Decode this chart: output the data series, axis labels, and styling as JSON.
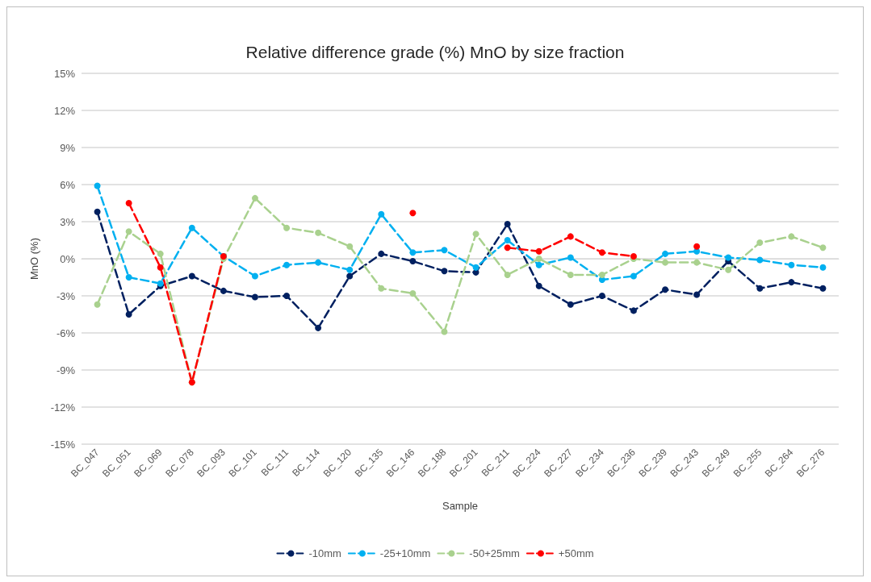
{
  "chart_data": {
    "type": "line",
    "title": "Relative difference grade (%) MnO by size fraction",
    "xlabel": "Sample",
    "ylabel": "MnO (%)",
    "categories": [
      "BC_047",
      "BC_051",
      "BC_069",
      "BC_078",
      "BC_093",
      "BC_101",
      "BC_111",
      "BC_114",
      "BC_120",
      "BC_135",
      "BC_146",
      "BC_188",
      "BC_201",
      "BC_211",
      "BC_224",
      "BC_227",
      "BC_234",
      "BC_236",
      "BC_239",
      "BC_243",
      "BC_249",
      "BC_255",
      "BC_264",
      "BC_276"
    ],
    "series": [
      {
        "name": "-10mm",
        "color": "#002060",
        "values": [
          3.8,
          -4.5,
          -2.2,
          -1.4,
          -2.6,
          -3.1,
          -3.0,
          -5.6,
          -1.4,
          0.4,
          -0.2,
          -1.0,
          -1.1,
          2.8,
          -2.2,
          -3.7,
          -3.0,
          -4.2,
          -2.5,
          -2.9,
          -0.2,
          -2.4,
          -1.9,
          -2.4
        ]
      },
      {
        "name": "-25+10mm",
        "color": "#00b0f0",
        "values": [
          5.9,
          -1.5,
          -2.0,
          2.5,
          0.2,
          -1.4,
          -0.5,
          -0.3,
          -0.9,
          3.6,
          0.5,
          0.7,
          -0.7,
          1.5,
          -0.5,
          0.1,
          -1.7,
          -1.4,
          0.4,
          0.6,
          0.1,
          -0.1,
          -0.5,
          -0.7
        ]
      },
      {
        "name": "-50+25mm",
        "color": "#a9d18e",
        "values": [
          -3.7,
          2.2,
          0.4,
          -10.0,
          0.0,
          4.9,
          2.5,
          2.1,
          1.0,
          -2.4,
          -2.8,
          -5.9,
          2.0,
          -1.3,
          0.0,
          -1.3,
          -1.3,
          0.0,
          -0.3,
          -0.3,
          -0.9,
          1.3,
          1.8,
          0.9
        ]
      },
      {
        "name": "+50mm",
        "color": "#ff0000",
        "values": [
          null,
          4.5,
          -0.7,
          -10.0,
          0.2,
          null,
          null,
          null,
          null,
          null,
          3.7,
          null,
          null,
          0.9,
          0.6,
          1.8,
          0.5,
          0.2,
          null,
          1.0,
          null,
          null,
          null,
          null
        ]
      }
    ],
    "ylim": [
      -15,
      15
    ],
    "yticks": [
      {
        "value": -15,
        "label": "-15%"
      },
      {
        "value": -12,
        "label": "-12%"
      },
      {
        "value": -9,
        "label": "-9%"
      },
      {
        "value": -6,
        "label": "-6%"
      },
      {
        "value": -3,
        "label": "-3%"
      },
      {
        "value": 0,
        "label": "0%"
      },
      {
        "value": 3,
        "label": "3%"
      },
      {
        "value": 6,
        "label": "6%"
      },
      {
        "value": 9,
        "label": "9%"
      },
      {
        "value": 12,
        "label": "12%"
      },
      {
        "value": 15,
        "label": "15%"
      }
    ],
    "grid": "y",
    "legend": "bottom",
    "marker": "circle",
    "line_style": "dashed"
  }
}
